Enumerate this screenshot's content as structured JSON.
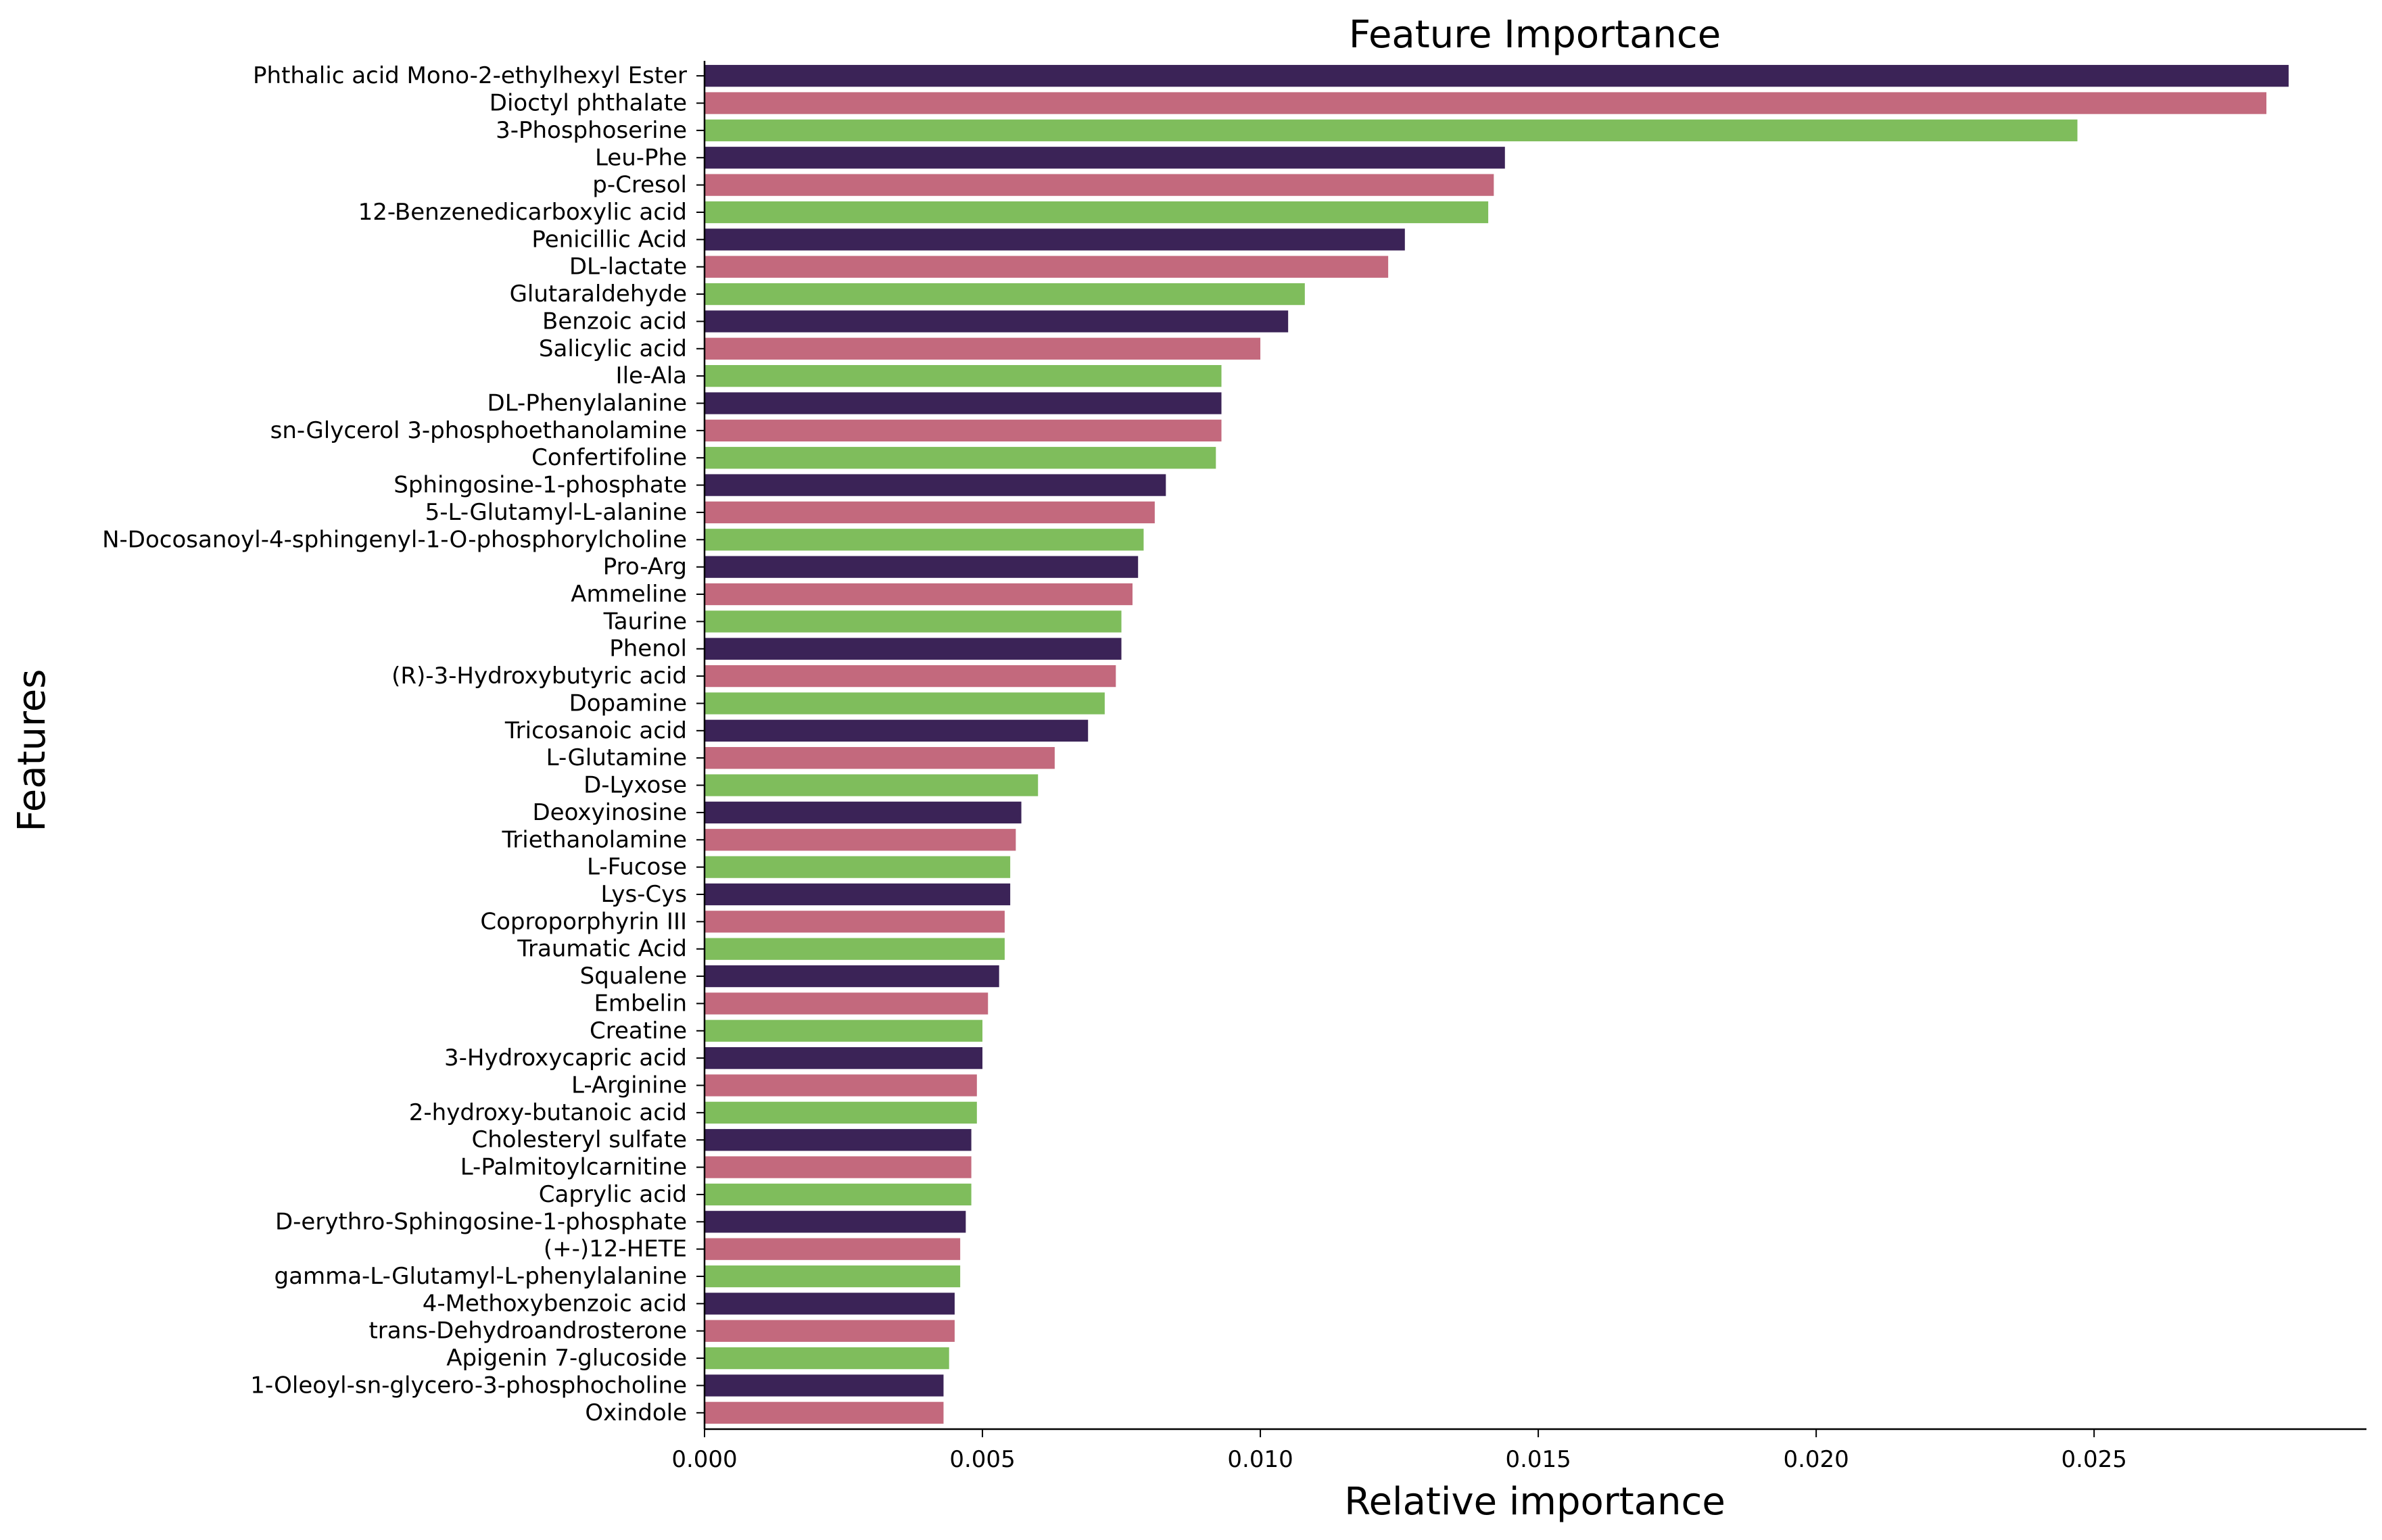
{
  "chart_data": {
    "type": "bar",
    "orientation": "horizontal",
    "title": "Feature Importance",
    "xlabel": "Relative importance",
    "ylabel": "Features",
    "xlim": [
      0.0,
      0.0299
    ],
    "xticks": [
      "0.000",
      "0.005",
      "0.010",
      "0.015",
      "0.020",
      "0.025"
    ],
    "grid": false,
    "colors": [
      "#3b2357",
      "#c3697d",
      "#7fbd5c"
    ],
    "categories": [
      "Phthalic acid Mono-2-ethylhexyl Ester",
      "Dioctyl phthalate",
      "3-Phosphoserine",
      "Leu-Phe",
      "p-Cresol",
      "12-Benzenedicarboxylic acid",
      "Penicillic Acid",
      "DL-lactate",
      "Glutaraldehyde",
      "Benzoic acid",
      "Salicylic acid",
      "Ile-Ala",
      "DL-Phenylalanine",
      "sn-Glycerol 3-phosphoethanolamine",
      "Confertifoline",
      "Sphingosine-1-phosphate",
      "5-L-Glutamyl-L-alanine",
      "N-Docosanoyl-4-sphingenyl-1-O-phosphorylcholine",
      "Pro-Arg",
      "Ammeline",
      "Taurine",
      "Phenol",
      "(R)-3-Hydroxybutyric acid",
      "Dopamine",
      "Tricosanoic acid",
      "L-Glutamine",
      "D-Lyxose",
      "Deoxyinosine",
      "Triethanolamine",
      "L-Fucose",
      "Lys-Cys",
      "Coproporphyrin III",
      "Traumatic Acid",
      "Squalene",
      "Embelin",
      "Creatine",
      "3-Hydroxycapric acid",
      "L-Arginine",
      "2-hydroxy-butanoic acid",
      "Cholesteryl sulfate",
      "L-Palmitoylcarnitine",
      "Caprylic acid",
      "D-erythro-Sphingosine-1-phosphate",
      "(+-)12-HETE",
      "gamma-L-Glutamyl-L-phenylalanine",
      "4-Methoxybenzoic acid",
      "trans-Dehydroandrosterone",
      "Apigenin 7-glucoside",
      "1-Oleoyl-sn-glycero-3-phosphocholine",
      "Oxindole"
    ],
    "values": [
      0.0285,
      0.0281,
      0.0247,
      0.0144,
      0.0142,
      0.0141,
      0.0126,
      0.0123,
      0.0108,
      0.0105,
      0.01,
      0.0093,
      0.0093,
      0.0093,
      0.0092,
      0.0083,
      0.0081,
      0.0079,
      0.0078,
      0.0077,
      0.0075,
      0.0075,
      0.0074,
      0.0072,
      0.0069,
      0.0063,
      0.006,
      0.0057,
      0.0056,
      0.0055,
      0.0055,
      0.0054,
      0.0054,
      0.0053,
      0.0051,
      0.005,
      0.005,
      0.0049,
      0.0049,
      0.0048,
      0.0048,
      0.0048,
      0.0047,
      0.0046,
      0.0046,
      0.0045,
      0.0045,
      0.0044,
      0.0043,
      0.0043
    ]
  }
}
